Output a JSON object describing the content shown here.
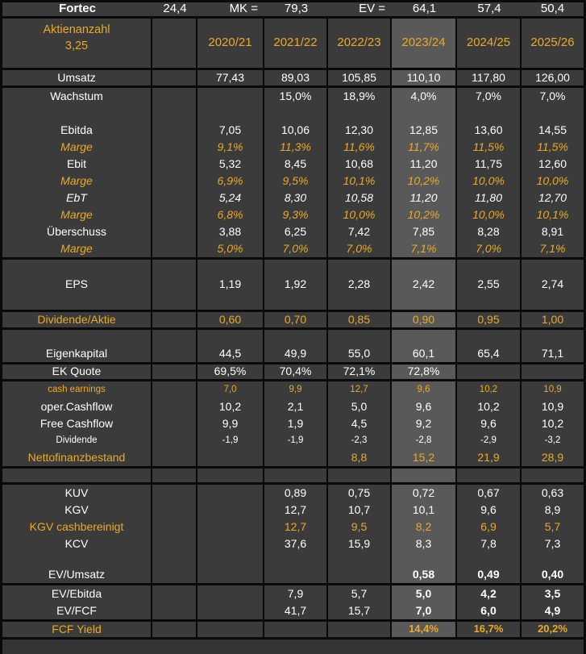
{
  "colors": {
    "cell_bg": "#3b3b3b",
    "highlight_bg": "#595959",
    "grid_border": "#0a0a0a",
    "accent_yellow": "#eaaa24",
    "text_white": "#ffffff",
    "bottom_band_bg": "#343434"
  },
  "top_row": {
    "cells": [
      "Fortec",
      "24,4",
      "MK =",
      "79,3",
      "EV =",
      "64,1",
      "57,4",
      "50,4"
    ]
  },
  "header": {
    "label_line1": "Aktienanzahl",
    "label_line2": "3,25",
    "years": [
      "2020/21",
      "2021/22",
      "2022/23",
      "2023/24",
      "2024/25",
      "2025/26"
    ],
    "highlighted_year": "2023/24"
  },
  "rows": [
    {
      "id": "umsatz",
      "label": "Umsatz",
      "h": 19,
      "sep": true,
      "values": [
        "77,43",
        "89,03",
        "105,85",
        "110,10",
        "117,80",
        "126,00"
      ]
    },
    {
      "id": "wachstum",
      "label": "Wachstum",
      "values": [
        "",
        "15,0%",
        "18,9%",
        "4,0%",
        "7,0%",
        "7,0%"
      ]
    },
    {
      "id": "empty-1",
      "label": "",
      "values": [
        "",
        "",
        "",
        "",
        "",
        ""
      ]
    },
    {
      "id": "ebitda",
      "label": "Ebitda",
      "values": [
        "7,05",
        "10,06",
        "12,30",
        "12,85",
        "13,60",
        "14,55"
      ]
    },
    {
      "id": "marge-ebitda",
      "label": "Marge",
      "lc": "y i",
      "vc": "y i",
      "values": [
        "9,1%",
        "11,3%",
        "11,6%",
        "11,7%",
        "11,5%",
        "11,5%"
      ]
    },
    {
      "id": "ebit",
      "label": "Ebit",
      "values": [
        "5,32",
        "8,45",
        "10,68",
        "11,20",
        "11,75",
        "12,60"
      ]
    },
    {
      "id": "marge-ebit",
      "label": "Marge",
      "lc": "y i",
      "vc": "y i",
      "values": [
        "6,9%",
        "9,5%",
        "10,1%",
        "10,2%",
        "10,0%",
        "10,0%"
      ]
    },
    {
      "id": "ebt",
      "label": "EbT",
      "lc": "i",
      "vc": "i",
      "values": [
        "5,24",
        "8,30",
        "10,58",
        "11,20",
        "11,80",
        "12,70"
      ]
    },
    {
      "id": "marge-ebt",
      "label": "Marge",
      "lc": "y i",
      "vc": "y i",
      "values": [
        "6,8%",
        "9,3%",
        "10,0%",
        "10,2%",
        "10,0%",
        "10,1%"
      ]
    },
    {
      "id": "ueberschuss",
      "label": "Überschuss",
      "values": [
        "3,88",
        "6,25",
        "7,42",
        "7,85",
        "8,28",
        "8,91"
      ]
    },
    {
      "id": "marge-ueberschuss",
      "label": "Marge",
      "lc": "y i",
      "vc": "y i",
      "sep": true,
      "values": [
        "5,0%",
        "7,0%",
        "7,0%",
        "7,1%",
        "7,0%",
        "7,1%"
      ]
    },
    {
      "id": "eps",
      "label": "EPS",
      "h": 62,
      "sep": true,
      "values": [
        "1,19",
        "1,92",
        "2,28",
        "2,42",
        "2,55",
        "2,74"
      ]
    },
    {
      "id": "dividende-aktie",
      "label": "Dividende/Aktie",
      "lc": "y",
      "vc": "y",
      "h": 19,
      "sep": true,
      "values": [
        "0,60",
        "0,70",
        "0,85",
        "0,90",
        "0,95",
        "1,00"
      ]
    },
    {
      "id": "empty-2",
      "label": "",
      "h": 19,
      "values": [
        "",
        "",
        "",
        "",
        "",
        ""
      ]
    },
    {
      "id": "eigenkapital",
      "label": "Eigenkapital",
      "sep": true,
      "values": [
        "44,5",
        "49,9",
        "55,0",
        "60,1",
        "65,4",
        "71,1"
      ]
    },
    {
      "id": "ek-quote",
      "label": "EK Quote",
      "h": 18,
      "sep": true,
      "values": [
        "69,5%",
        "70,4%",
        "72,1%",
        "72,8%",
        "",
        ""
      ]
    },
    {
      "id": "cash-earnings",
      "label": "cash earnings",
      "lc": "y sm",
      "vc": "y sm",
      "values": [
        "7,0",
        "9,9",
        "12,7",
        "9,6",
        "10,2",
        "10,9"
      ]
    },
    {
      "id": "oper-cashflow",
      "label": "oper.Cashflow",
      "values": [
        "10,2",
        "2,1",
        "5,0",
        "9,6",
        "10,2",
        "10,9"
      ]
    },
    {
      "id": "free-cashflow",
      "label": "Free Cashflow",
      "values": [
        "9,9",
        "1,9",
        "4,5",
        "9,2",
        "9,6",
        "10,2"
      ]
    },
    {
      "id": "dividende",
      "label": "Dividende",
      "lc": "sm",
      "vc": "sm",
      "values": [
        "-1,9",
        "-1,9",
        "-2,3",
        "-2,8",
        "-2,9",
        "-3,2"
      ]
    },
    {
      "id": "nettofinanzbestand",
      "label": "Nettofinanzbestand",
      "lc": "y",
      "vc": "y",
      "sep": true,
      "values": [
        "",
        "",
        "8,8",
        "15,2",
        "21,9",
        "28,9"
      ]
    },
    {
      "id": "empty-3",
      "label": "",
      "h": 17,
      "sep": true,
      "values": [
        "",
        "",
        "",
        "",
        "",
        ""
      ]
    },
    {
      "id": "kuv",
      "label": "KUV",
      "values": [
        "",
        "0,89",
        "0,75",
        "0,72",
        "0,67",
        "0,63"
      ]
    },
    {
      "id": "kgv",
      "label": "KGV",
      "values": [
        "",
        "12,7",
        "10,7",
        "10,1",
        "9,6",
        "8,9"
      ]
    },
    {
      "id": "kgv-cashbereinigt",
      "label": "KGV cashbereinigt",
      "lc": "y",
      "vc": "y",
      "values": [
        "",
        "12,7",
        "9,5",
        "8,2",
        "6,9",
        "5,7"
      ]
    },
    {
      "id": "kcv",
      "label": "KCV",
      "values": [
        "",
        "37,6",
        "15,9",
        "8,3",
        "7,8",
        "7,3"
      ]
    },
    {
      "id": "empty-4",
      "label": "",
      "h": 17,
      "values": [
        "",
        "",
        "",
        "",
        "",
        ""
      ]
    },
    {
      "id": "ev-umsatz",
      "label": "EV/Umsatz",
      "boldFrom": 3,
      "sep": true,
      "values": [
        "",
        "",
        "",
        "0,58",
        "0,49",
        "0,40"
      ]
    },
    {
      "id": "ev-ebitda",
      "label": "EV/Ebitda",
      "boldFrom": 3,
      "values": [
        "",
        "7,9",
        "5,7",
        "5,0",
        "4,2",
        "3,5"
      ]
    },
    {
      "id": "ev-fcf",
      "label": "EV/FCF",
      "boldFrom": 3,
      "sep": true,
      "values": [
        "",
        "41,7",
        "15,7",
        "7,0",
        "6,0",
        "4,9"
      ]
    },
    {
      "id": "fcf-yield",
      "label": "FCF Yield",
      "lc": "y",
      "vc": "y b sm13",
      "h": 19,
      "sep": true,
      "values": [
        "",
        "",
        "",
        "14,4%",
        "16,7%",
        "20,2%"
      ]
    }
  ]
}
